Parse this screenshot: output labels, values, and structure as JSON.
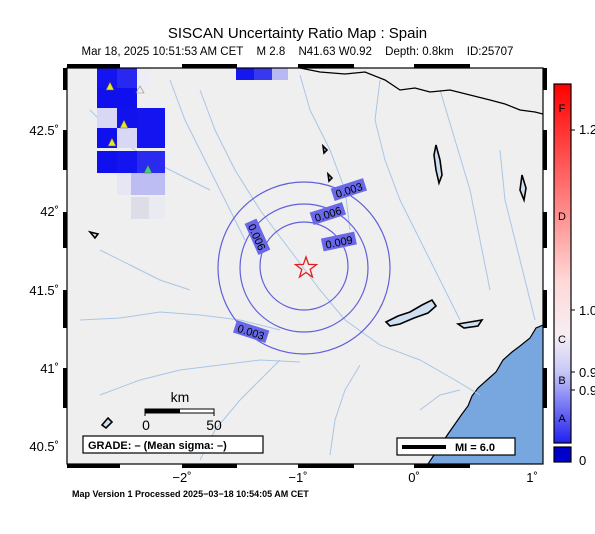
{
  "header": {
    "title": "SISCAN Uncertainty Ratio Map : Spain",
    "date": "Mar 18, 2025 10:51:53 AM CET",
    "magnitude": "M 2.8",
    "location": "N41.63 W0.92",
    "depth": "Depth: 0.8km",
    "event_id": "ID:25707"
  },
  "axes": {
    "y_ticks": [
      "42.5˚",
      "42˚",
      "41.5˚",
      "41˚",
      "40.5˚"
    ],
    "x_ticks": [
      "−2˚",
      "−1˚",
      "0˚",
      "1˚"
    ]
  },
  "contours": [
    "0.003",
    "0.006",
    "0.009",
    "0.006",
    "0.003"
  ],
  "scale_bar": {
    "title": "km",
    "tick_0": "0",
    "tick_50": "50"
  },
  "grade_box": "GRADE: – (Mean sigma: –)",
  "mi_legend": "MI = 6.0",
  "colorbar": {
    "grades": [
      "F",
      "D",
      "C",
      "B",
      "A"
    ],
    "values": [
      "1.2",
      "1.0",
      "0.9",
      "0.9",
      "0"
    ]
  },
  "footer": "Map Version 1 Processed 2025−03−18 10:54:05 AM CET",
  "colors": {
    "land": "#efefef",
    "sea": "#78a7e0",
    "rivers": "#a8c6e6",
    "contour": "#6060dd",
    "grid_blue": "#1414f0",
    "epicenter": "#e02020"
  }
}
